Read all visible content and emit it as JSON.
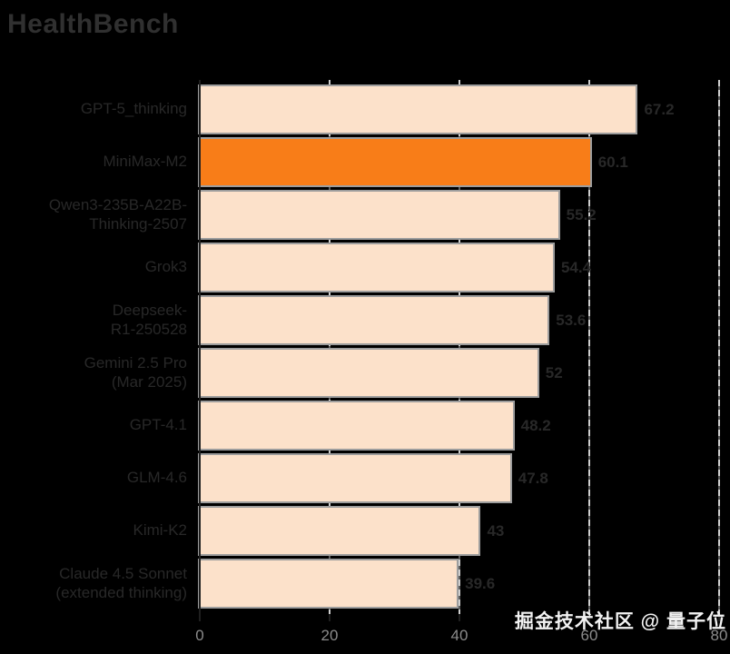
{
  "title": "HealthBench",
  "watermark": "掘金技术社区 @ 量子位",
  "colors": {
    "background": "#000000",
    "bar": "#fce1ca",
    "highlight": "#f87d18",
    "bar_edge": "#9d9d9d",
    "grid": "#cfcfcf",
    "label_text": "#282828",
    "tick_text": "#8b8b8b",
    "watermark_text": "#f2f2f2"
  },
  "chart_data": {
    "type": "bar",
    "orientation": "horizontal",
    "title": "HealthBench",
    "xlabel": "",
    "ylabel": "",
    "xlim": [
      0,
      81
    ],
    "xticks": [
      0,
      20,
      40,
      60,
      80
    ],
    "grid": true,
    "highlight_color_meaning": "MiniMax-M2 highlighted in orange",
    "bars": [
      {
        "label": "GPT-5_thinking",
        "label_lines": [
          "GPT-5_thinking"
        ],
        "value": 67.2,
        "highlight": false
      },
      {
        "label": "MiniMax-M2",
        "label_lines": [
          "MiniMax-M2"
        ],
        "value": 60.1,
        "highlight": true
      },
      {
        "label": "Qwen3-235B-A22B-Thinking-2507",
        "label_lines": [
          "Qwen3-235B-A22B-",
          "Thinking-2507"
        ],
        "value": 55.2,
        "highlight": false
      },
      {
        "label": "Grok3",
        "label_lines": [
          "Grok3"
        ],
        "value": 54.4,
        "highlight": false
      },
      {
        "label": "Deepseek-R1-250528",
        "label_lines": [
          "Deepseek-",
          "R1-250528"
        ],
        "value": 53.6,
        "highlight": false
      },
      {
        "label": "Gemini 2.5 Pro (Mar 2025)",
        "label_lines": [
          "Gemini 2.5 Pro",
          "(Mar 2025)"
        ],
        "value": 52,
        "highlight": false
      },
      {
        "label": "GPT-4.1",
        "label_lines": [
          "GPT-4.1"
        ],
        "value": 48.2,
        "highlight": false
      },
      {
        "label": "GLM-4.6",
        "label_lines": [
          "GLM-4.6"
        ],
        "value": 47.8,
        "highlight": false
      },
      {
        "label": "Kimi-K2",
        "label_lines": [
          "Kimi-K2"
        ],
        "value": 43,
        "highlight": false
      },
      {
        "label": "Claude 4.5 Sonnet (extended thinking)",
        "label_lines": [
          "Claude 4.5 Sonnet",
          "(extended thinking)"
        ],
        "value": 39.6,
        "highlight": false
      }
    ]
  }
}
